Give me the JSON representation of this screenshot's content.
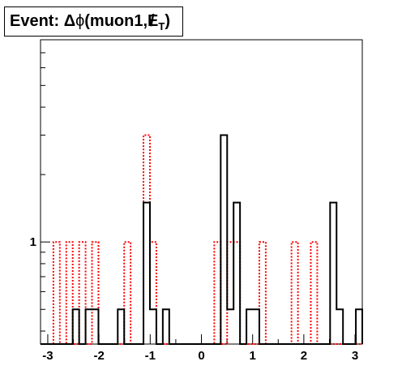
{
  "chart_data": {
    "type": "histogram",
    "title": "Event: Δϕ(muon1,E̸T)",
    "title_parts": {
      "prefix": "Event: ",
      "delta": "Δ",
      "phi": "ϕ",
      "paren_text": "(muon1,",
      "met": "E",
      "met_sub": "T",
      "close": ")"
    },
    "xlabel": "",
    "ylabel": "",
    "xlim": [
      -3.1416,
      3.1416
    ],
    "y_log": true,
    "ylim": [
      0.35,
      8.0
    ],
    "x_ticks": [
      -3,
      -2,
      -1,
      0,
      1,
      2,
      3
    ],
    "x_tick_labels": [
      "-3",
      "-2",
      "-1",
      "0",
      "1",
      "2",
      "3"
    ],
    "y_ticks": [
      1
    ],
    "y_tick_labels": [
      "1"
    ],
    "n_bins": 50,
    "series": [
      {
        "style": "solid",
        "color": "#000000",
        "values": [
          0,
          0,
          0,
          0,
          0,
          0.5,
          0,
          0.5,
          0.5,
          0,
          0,
          0,
          0.5,
          0,
          0,
          0,
          1.5,
          0.5,
          0,
          0.5,
          0,
          0,
          0,
          0,
          0,
          0,
          0,
          0,
          3,
          0.5,
          1.5,
          0,
          0.5,
          0.5,
          0,
          0,
          0,
          0,
          0,
          0,
          0,
          0,
          0,
          0,
          0,
          1.5,
          0.5,
          0,
          0,
          0.5
        ]
      },
      {
        "style": "dashed",
        "color": "#ff0000",
        "values": [
          0,
          0,
          1,
          0,
          1,
          0,
          1,
          0,
          1,
          0,
          0,
          0,
          0,
          1,
          0,
          0,
          3,
          1,
          0,
          0,
          0,
          0,
          0,
          0,
          0,
          0,
          0,
          1,
          0,
          1,
          1,
          0,
          0,
          0,
          1,
          0,
          0,
          0,
          0,
          1,
          0,
          0,
          1,
          0,
          0,
          0,
          0,
          0,
          0,
          0
        ]
      }
    ]
  }
}
